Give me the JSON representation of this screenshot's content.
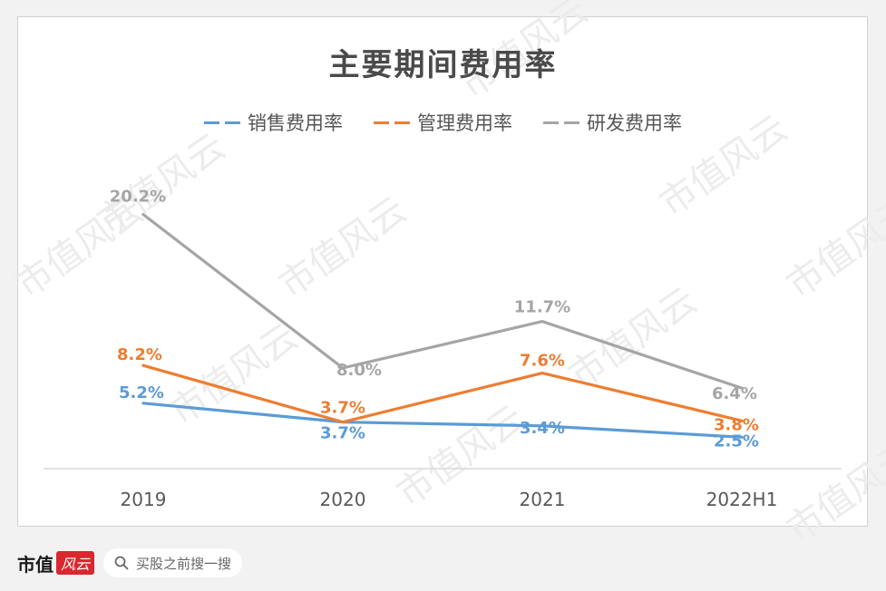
{
  "chart_data": {
    "type": "line",
    "title": "主要期间费用率",
    "categories": [
      "2019",
      "2020",
      "2021",
      "2022H1"
    ],
    "ylim": [
      0,
      25
    ],
    "grid": false,
    "legend_position": "top",
    "series": [
      {
        "name": "销售费用率",
        "color": "#5b9bd5",
        "values": [
          5.2,
          3.7,
          3.4,
          2.5
        ],
        "labels": [
          "5.2%",
          "3.7%",
          "3.4%",
          "2.5%"
        ]
      },
      {
        "name": "管理费用率",
        "color": "#ed7d31",
        "values": [
          8.2,
          3.7,
          7.6,
          3.8
        ],
        "labels": [
          "8.2%",
          "3.7%",
          "7.6%",
          "3.8%"
        ]
      },
      {
        "name": "研发费用率",
        "color": "#a5a5a5",
        "values": [
          20.2,
          8.0,
          11.7,
          6.4
        ],
        "labels": [
          "20.2%",
          "8.0%",
          "11.7%",
          "6.4%"
        ]
      }
    ]
  },
  "footer": {
    "brand": "市值",
    "brand_mark": "风云",
    "search_placeholder": "买股之前搜一搜",
    "search_icon": "search-icon"
  },
  "watermark": "市值风云"
}
